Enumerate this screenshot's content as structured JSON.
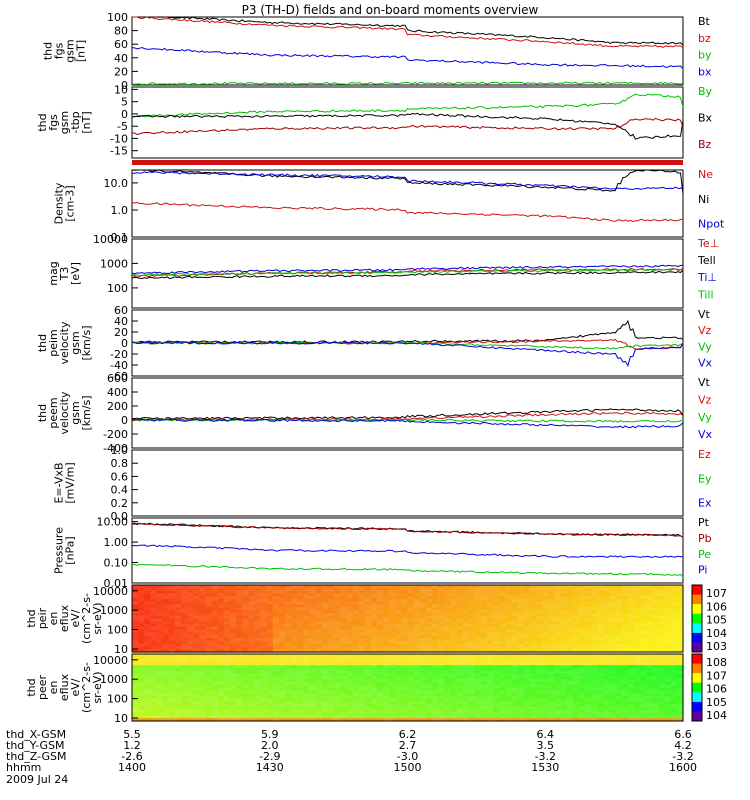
{
  "title": "P3 (TH-D) fields and on-board moments overview",
  "colors": {
    "black": "#000000",
    "red": "#d01010",
    "green": "#00c000",
    "blue": "#0000e0",
    "darkred": "#a00000"
  },
  "footer": {
    "rows": [
      {
        "label": "thd_X-GSM",
        "values": [
          "5.5",
          "5.9",
          "6.2",
          "6.4",
          "6.6"
        ]
      },
      {
        "label": "thd_Y-GSM",
        "values": [
          "1.2",
          "2.0",
          "2.7",
          "3.5",
          "4.2"
        ]
      },
      {
        "label": "thd_Z-GSM",
        "values": [
          "-2.6",
          "-2.9",
          "-3.0",
          "-3.2",
          "-3.2"
        ]
      },
      {
        "label": "hhmm",
        "values": [
          "1400",
          "1430",
          "1500",
          "1530",
          "1600"
        ]
      }
    ],
    "date": "2009 Jul 24"
  },
  "chart_data": [
    {
      "type": "line",
      "ylabel": [
        "thd",
        "fgs",
        "gsm",
        "[nT]"
      ],
      "ylim": [
        0,
        100
      ],
      "yticks": [
        "0",
        "20",
        "40",
        "60",
        "80",
        "100"
      ],
      "series": [
        {
          "name": "Bt",
          "color": "black",
          "x": [
            1400,
            1430,
            1500,
            1530,
            1545,
            1600
          ],
          "y": [
            103,
            92,
            80,
            70,
            62,
            60
          ]
        },
        {
          "name": "bz",
          "color": "red",
          "x": [
            1400,
            1430,
            1500,
            1530,
            1545,
            1600
          ],
          "y": [
            100,
            88,
            74,
            64,
            57,
            55
          ]
        },
        {
          "name": "by",
          "color": "green",
          "x": [
            1400,
            1600
          ],
          "y": [
            2,
            3
          ]
        },
        {
          "name": "bx",
          "color": "blue",
          "x": [
            1400,
            1430,
            1500,
            1530,
            1600
          ],
          "y": [
            55,
            44,
            37,
            30,
            23
          ]
        }
      ]
    },
    {
      "type": "line",
      "ylabel": [
        "thd",
        "fgs",
        "gsm",
        "-tbp",
        "[nT]"
      ],
      "ylim": [
        -18,
        11
      ],
      "yticks": [
        "10",
        "5",
        "0",
        "-5",
        "-10",
        "-15"
      ],
      "series": [
        {
          "name": "By",
          "color": "green",
          "x": [
            1400,
            1430,
            1500,
            1530,
            1545,
            1550,
            1600
          ],
          "y": [
            -1,
            1,
            2,
            3,
            4,
            8,
            3
          ]
        },
        {
          "name": "Bx",
          "color": "black",
          "x": [
            1400,
            1430,
            1500,
            1530,
            1545,
            1550,
            1600
          ],
          "y": [
            -1,
            -1,
            0,
            -2,
            -4,
            -10,
            -3
          ]
        },
        {
          "name": "Bz",
          "color": "darkred",
          "x": [
            1400,
            1430,
            1500,
            1530,
            1545,
            1550,
            1600
          ],
          "y": [
            -8,
            -6,
            -5,
            -6,
            -6,
            -2,
            -5
          ]
        }
      ]
    },
    {
      "type": "line",
      "ylabel": [
        "Density",
        "[cm-3]"
      ],
      "log": true,
      "ylim": [
        0.1,
        30
      ],
      "yticks": [
        "10.0",
        "1.0",
        "0.1"
      ],
      "series": [
        {
          "name": "Ne",
          "color": "red",
          "x": [
            1400,
            1430,
            1500,
            1530,
            1545,
            1600
          ],
          "y": [
            1.8,
            1.2,
            0.8,
            0.6,
            0.4,
            0.5
          ]
        },
        {
          "name": "Ni",
          "color": "black",
          "x": [
            1400,
            1430,
            1500,
            1530,
            1545,
            1550,
            1600
          ],
          "y": [
            30,
            18,
            10,
            7,
            5,
            30,
            4
          ]
        },
        {
          "name": "Npot",
          "color": "blue",
          "x": [
            1400,
            1430,
            1500,
            1530,
            1545,
            1600
          ],
          "y": [
            25,
            20,
            12,
            8,
            6,
            8
          ]
        }
      ]
    },
    {
      "type": "line",
      "ylabel": [
        "mag",
        "T3",
        "[eV]"
      ],
      "log": true,
      "ylim": [
        15,
        10000
      ],
      "yticks": [
        "10000",
        "1000",
        "100"
      ],
      "series": [
        {
          "name": "Te⊥",
          "color": "red",
          "x": [
            1400,
            1430,
            1500,
            1530,
            1600
          ],
          "y": [
            300,
            400,
            500,
            550,
            600
          ]
        },
        {
          "name": "Tell",
          "color": "black",
          "x": [
            1400,
            1430,
            1500,
            1530,
            1600
          ],
          "y": [
            250,
            300,
            350,
            400,
            500
          ]
        },
        {
          "name": "Ti⊥",
          "color": "blue",
          "x": [
            1400,
            1430,
            1500,
            1530,
            1600
          ],
          "y": [
            400,
            500,
            600,
            700,
            900
          ]
        },
        {
          "name": "Till",
          "color": "green",
          "x": [
            1400,
            1430,
            1500,
            1530,
            1600
          ],
          "y": [
            350,
            400,
            450,
            500,
            600
          ]
        }
      ]
    },
    {
      "type": "line",
      "ylabel": [
        "thd",
        "peim",
        "velocity",
        "gsm",
        "[km/s]"
      ],
      "ylim": [
        -60,
        60
      ],
      "yticks": [
        "60",
        "40",
        "20",
        "0",
        "-20",
        "-40",
        "-60"
      ],
      "series": [
        {
          "name": "Vt",
          "color": "black",
          "x": [
            1400,
            1430,
            1500,
            1530,
            1545,
            1548,
            1550,
            1600
          ],
          "y": [
            2,
            2,
            3,
            4,
            20,
            40,
            10,
            5
          ]
        },
        {
          "name": "Vz",
          "color": "red",
          "x": [
            1400,
            1500,
            1545,
            1550,
            1600
          ],
          "y": [
            0,
            0,
            5,
            -10,
            0
          ]
        },
        {
          "name": "Vy",
          "color": "green",
          "x": [
            1400,
            1500,
            1545,
            1550,
            1600
          ],
          "y": [
            0,
            0,
            -10,
            -5,
            0
          ]
        },
        {
          "name": "Vx",
          "color": "blue",
          "x": [
            1400,
            1500,
            1545,
            1548,
            1550,
            1600
          ],
          "y": [
            0,
            0,
            -20,
            -40,
            -10,
            0
          ]
        }
      ]
    },
    {
      "type": "line",
      "ylabel": [
        "thd",
        "peem",
        "velocity",
        "gsm",
        "[km/s]"
      ],
      "ylim": [
        -400,
        600
      ],
      "yticks": [
        "600",
        "400",
        "200",
        "0",
        "-200",
        "-400"
      ],
      "series": [
        {
          "name": "Vt",
          "color": "black",
          "x": [
            1400,
            1500,
            1545,
            1600
          ],
          "y": [
            20,
            50,
            150,
            80
          ]
        },
        {
          "name": "Vz",
          "color": "red",
          "x": [
            1400,
            1500,
            1545,
            1600
          ],
          "y": [
            0,
            20,
            100,
            50
          ]
        },
        {
          "name": "Vy",
          "color": "green",
          "x": [
            1400,
            1500,
            1545,
            1600
          ],
          "y": [
            0,
            0,
            -20,
            0
          ]
        },
        {
          "name": "Vx",
          "color": "blue",
          "x": [
            1400,
            1500,
            1545,
            1600
          ],
          "y": [
            0,
            -20,
            -100,
            -50
          ]
        }
      ]
    },
    {
      "type": "line",
      "ylabel": [
        "E=-VxB",
        "[mV/m]"
      ],
      "ylim": [
        0,
        1
      ],
      "yticks": [
        "1.0",
        "0.8",
        "0.6",
        "0.4",
        "0.2",
        "0.0"
      ],
      "series": [
        {
          "name": "Ez",
          "color": "red",
          "x": [],
          "y": []
        },
        {
          "name": "Ey",
          "color": "green",
          "x": [],
          "y": []
        },
        {
          "name": "Ex",
          "color": "blue",
          "x": [],
          "y": []
        }
      ]
    },
    {
      "type": "line",
      "ylabel": [
        "Pressure",
        "[nPa]"
      ],
      "log": true,
      "ylim": [
        0.01,
        15
      ],
      "yticks": [
        "10.00",
        "1.00",
        "0.10",
        "0.01"
      ],
      "series": [
        {
          "name": "Pt",
          "color": "black",
          "x": [
            1400,
            1430,
            1500,
            1530,
            1600
          ],
          "y": [
            8,
            5,
            3.5,
            2.5,
            1.8
          ]
        },
        {
          "name": "Pb",
          "color": "darkred",
          "x": [
            1400,
            1430,
            1500,
            1530,
            1600
          ],
          "y": [
            7.8,
            4.9,
            3.4,
            2.4,
            1.7
          ]
        },
        {
          "name": "Pe",
          "color": "green",
          "x": [
            1400,
            1430,
            1500,
            1530,
            1600
          ],
          "y": [
            0.08,
            0.05,
            0.04,
            0.03,
            0.02
          ]
        },
        {
          "name": "Pi",
          "color": "blue",
          "x": [
            1400,
            1430,
            1500,
            1530,
            1600
          ],
          "y": [
            0.7,
            0.4,
            0.3,
            0.2,
            0.18
          ]
        }
      ]
    },
    {
      "type": "heatmap",
      "ylabel": [
        "thd",
        "peir",
        "en",
        "eflux",
        "eV/",
        "(cm^2-s-",
        "sr-eV)"
      ],
      "log": true,
      "ylim": [
        7,
        20000
      ],
      "yticks": [
        "10000",
        "1000",
        "100",
        "10"
      ],
      "colorbar": [
        "10^7",
        "10^6",
        "10^5",
        "10^4",
        "10^3"
      ],
      "palette": "red-high"
    },
    {
      "type": "heatmap",
      "ylabel": [
        "thd",
        "peer",
        "en",
        "eflux",
        "eV/",
        "(cm^2-s-",
        "sr-eV)"
      ],
      "log": true,
      "ylim": [
        7,
        20000
      ],
      "yticks": [
        "10000",
        "1000",
        "100",
        "10"
      ],
      "colorbar": [
        "10^8",
        "10^7",
        "10^6",
        "10^5",
        "10^4"
      ],
      "palette": "yellow-green"
    }
  ]
}
